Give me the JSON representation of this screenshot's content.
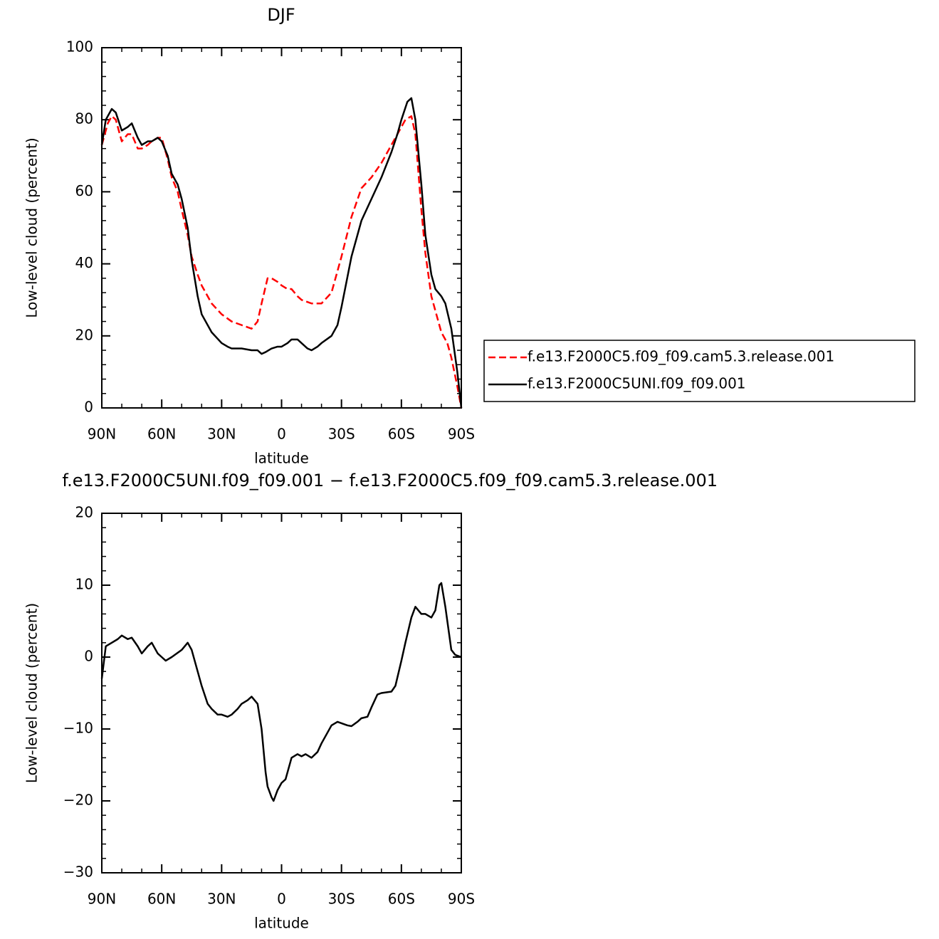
{
  "chart_data": [
    {
      "type": "line",
      "title": "DJF",
      "xlabel": "latitude",
      "ylabel": "Low-level cloud (percent)",
      "xlim": [
        90,
        -90
      ],
      "xticks": [
        {
          "value": 90,
          "label": "90N"
        },
        {
          "value": 60,
          "label": "60N"
        },
        {
          "value": 30,
          "label": "30N"
        },
        0,
        {
          "value": -30,
          "label": "30S"
        },
        {
          "value": -60,
          "label": "60S"
        },
        {
          "value": -90,
          "label": "90S"
        }
      ],
      "ylim": [
        0,
        100
      ],
      "yticks": [
        0,
        20,
        40,
        60,
        80,
        100
      ],
      "legend": "right",
      "series": [
        {
          "name": "f.e13.F2000C5.f09_f09.cam5.3.release.001",
          "color": "#ff0000",
          "line_style": "dashed",
          "x": [
            90,
            87,
            85,
            83,
            80,
            77,
            75,
            72,
            70,
            67,
            65,
            62,
            60,
            57,
            55,
            52,
            50,
            47,
            45,
            42,
            40,
            35,
            30,
            25,
            20,
            15,
            12,
            10,
            7,
            5,
            2,
            0,
            -3,
            -5,
            -8,
            -10,
            -15,
            -20,
            -25,
            -30,
            -35,
            -40,
            -45,
            -50,
            -55,
            -60,
            -62,
            -65,
            -67,
            -70,
            -72,
            -75,
            -77,
            -80,
            -83,
            -85,
            -88,
            -90
          ],
          "values": [
            73,
            79,
            81,
            80,
            74,
            76,
            76,
            72,
            72,
            73,
            74,
            75,
            75,
            69,
            64,
            60,
            55,
            48,
            42,
            37,
            34,
            29,
            26,
            24,
            23,
            22,
            24,
            29,
            36,
            36,
            35,
            34,
            33,
            33,
            31,
            30,
            29,
            29,
            32,
            42,
            53,
            61,
            64,
            68,
            73,
            78,
            80,
            81,
            76,
            55,
            43,
            31,
            27,
            21,
            18,
            14,
            6,
            0
          ]
        },
        {
          "name": "f.e13.F2000C5UNI.f09_f09.001",
          "color": "#000000",
          "line_style": "solid",
          "x": [
            90,
            88,
            85,
            83,
            80,
            77,
            75,
            72,
            70,
            67,
            65,
            62,
            60,
            57,
            55,
            52,
            50,
            47,
            45,
            42,
            40,
            35,
            30,
            27,
            25,
            20,
            15,
            12,
            10,
            8,
            5,
            2,
            0,
            -3,
            -5,
            -8,
            -10,
            -13,
            -15,
            -18,
            -20,
            -25,
            -28,
            -30,
            -35,
            -40,
            -45,
            -50,
            -55,
            -58,
            -60,
            -63,
            -65,
            -67,
            -70,
            -72,
            -75,
            -77,
            -80,
            -82,
            -85,
            -88,
            -90
          ],
          "values": [
            73,
            80,
            83,
            82,
            77,
            78,
            79,
            75,
            73,
            74,
            74,
            75,
            74,
            70,
            65,
            62,
            58,
            50,
            41,
            31,
            26,
            21,
            18,
            17,
            16.5,
            16.5,
            16,
            16,
            15,
            15.5,
            16.5,
            17,
            17,
            18,
            19,
            19,
            18,
            16.5,
            16,
            17,
            18,
            20,
            23,
            28,
            42,
            52,
            58,
            64,
            71,
            76,
            80,
            85,
            86,
            80,
            62,
            48,
            37,
            33,
            31,
            29,
            22,
            10,
            0
          ]
        }
      ]
    },
    {
      "type": "line",
      "title": "f.e13.F2000C5UNI.f09_f09.001 − f.e13.F2000C5.f09_f09.cam5.3.release.001",
      "xlabel": "latitude",
      "ylabel": "Low-level cloud (percent)",
      "xlim": [
        90,
        -90
      ],
      "xticks": [
        {
          "value": 90,
          "label": "90N"
        },
        {
          "value": 60,
          "label": "60N"
        },
        {
          "value": 30,
          "label": "30N"
        },
        0,
        {
          "value": -30,
          "label": "30S"
        },
        {
          "value": -60,
          "label": "60S"
        },
        {
          "value": -90,
          "label": "90S"
        }
      ],
      "ylim": [
        -30,
        20
      ],
      "yticks": [
        {
          "value": -30,
          "label": "−30"
        },
        {
          "value": -20,
          "label": "−20"
        },
        {
          "value": -10,
          "label": "−10"
        },
        0,
        10,
        20
      ],
      "series": [
        {
          "color": "#000000",
          "line_style": "solid",
          "x": [
            90,
            88,
            85,
            82,
            80,
            77,
            75,
            72,
            70,
            67,
            65,
            62,
            60,
            58,
            55,
            50,
            47,
            45,
            42,
            40,
            37,
            35,
            32,
            30,
            27,
            25,
            22,
            20,
            17,
            15,
            12,
            10,
            8,
            7,
            5,
            4,
            2,
            0,
            -2,
            -5,
            -8,
            -10,
            -12,
            -15,
            -18,
            -20,
            -23,
            -25,
            -28,
            -30,
            -33,
            -35,
            -38,
            -40,
            -43,
            -45,
            -48,
            -50,
            -55,
            -57,
            -60,
            -62,
            -65,
            -67,
            -70,
            -72,
            -75,
            -77,
            -79,
            -80,
            -82,
            -85,
            -87,
            -90
          ],
          "values": [
            -3,
            1.5,
            2,
            2.5,
            3,
            2.5,
            2.7,
            1.5,
            0.5,
            1.5,
            2,
            0.5,
            0,
            -0.5,
            0,
            1,
            2,
            1,
            -2,
            -4,
            -6.5,
            -7.2,
            -8,
            -8,
            -8.3,
            -8,
            -7.2,
            -6.5,
            -6,
            -5.5,
            -6.5,
            -10,
            -16,
            -18,
            -19.5,
            -20,
            -18.5,
            -17.5,
            -17,
            -14,
            -13.5,
            -13.8,
            -13.5,
            -14,
            -13.2,
            -12,
            -10.5,
            -9.5,
            -9,
            -9.2,
            -9.5,
            -9.6,
            -9,
            -8.5,
            -8.3,
            -7,
            -5.2,
            -5,
            -4.8,
            -4,
            -0.5,
            2,
            5.5,
            7,
            6,
            6,
            5.5,
            6.5,
            10,
            10.3,
            7,
            1,
            0.3,
            0
          ]
        }
      ]
    }
  ]
}
